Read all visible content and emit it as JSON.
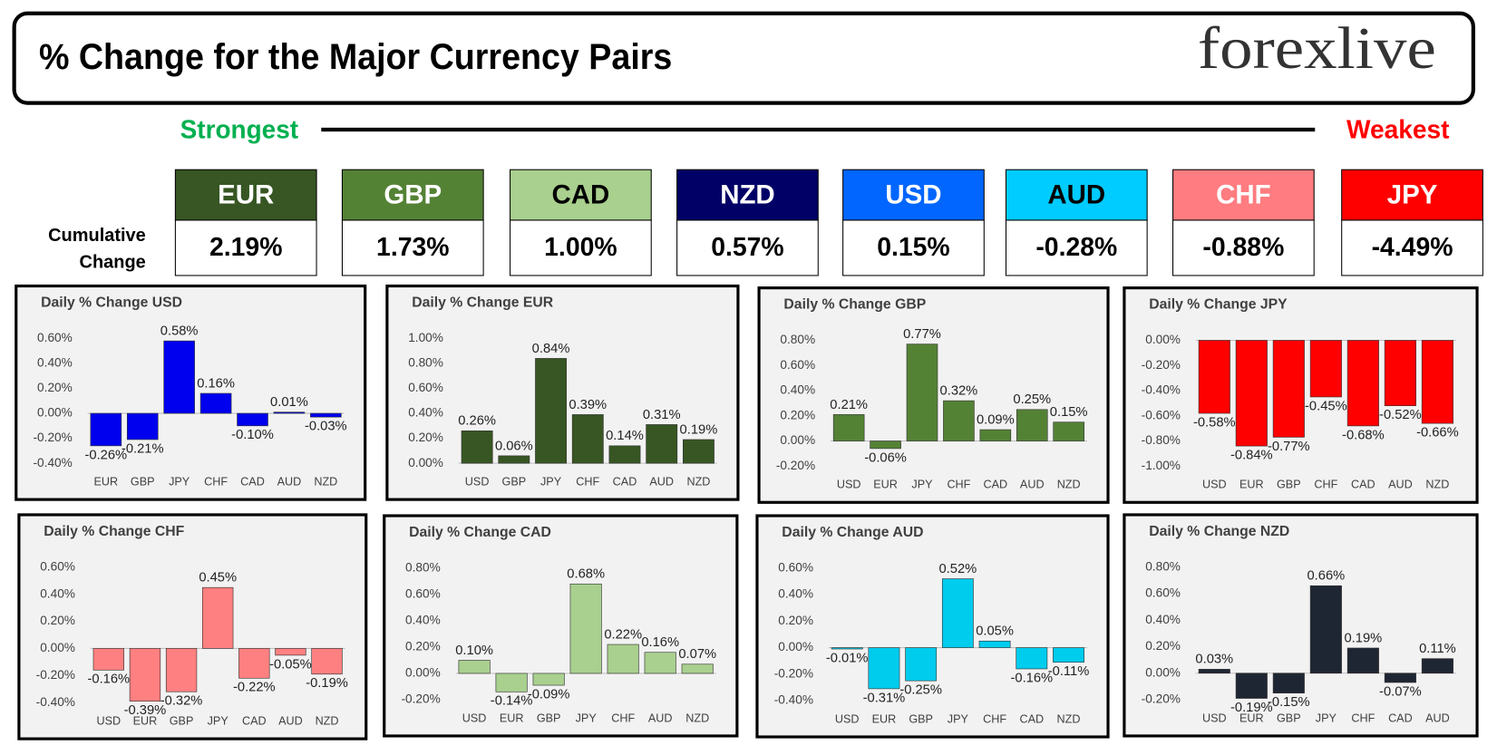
{
  "header": {
    "title": "% Change for the Major Currency Pairs",
    "logo": "forexlive"
  },
  "strongest": "Strongest",
  "weakest": "Weakest",
  "cumulative_label": [
    "Cumulative",
    "Change"
  ],
  "ranking": [
    {
      "currency": "EUR",
      "change": "2.19%",
      "color": "#375623",
      "text_color": "#ffffff"
    },
    {
      "currency": "GBP",
      "change": "1.73%",
      "color": "#548235",
      "text_color": "#ffffff"
    },
    {
      "currency": "CAD",
      "change": "1.00%",
      "color": "#a9d08e",
      "text_color": "#000000"
    },
    {
      "currency": "NZD",
      "change": "0.57%",
      "color": "#000066",
      "text_color": "#ffffff"
    },
    {
      "currency": "USD",
      "change": "0.15%",
      "color": "#0066ff",
      "text_color": "#ffffff"
    },
    {
      "currency": "AUD",
      "change": "-0.28%",
      "color": "#00ccff",
      "text_color": "#000000"
    },
    {
      "currency": "CHF",
      "change": "-0.88%",
      "color": "#ff7c80",
      "text_color": "#ffffff"
    },
    {
      "currency": "JPY",
      "change": "-4.49%",
      "color": "#ff0000",
      "text_color": "#ffffff"
    }
  ],
  "chart_data": [
    {
      "type": "bar",
      "title": "Daily % Change USD",
      "categories": [
        "EUR",
        "GBP",
        "JPY",
        "CHF",
        "CAD",
        "AUD",
        "NZD"
      ],
      "values": [
        -0.26,
        -0.21,
        0.58,
        0.16,
        -0.1,
        0.01,
        -0.03
      ],
      "value_labels": [
        "-0.26%",
        "-0.21%",
        "0.58%",
        "0.16%",
        "-0.10%",
        "0.01%",
        "-0.03%"
      ],
      "color": "#0000ee",
      "ylim": [
        -0.4,
        0.6
      ],
      "yticks": [
        {
          "value": -0.4,
          "label": "-0.40%"
        },
        {
          "value": -0.2,
          "label": "-0.20%"
        },
        {
          "value": 0,
          "label": "0.00%"
        },
        {
          "value": 0.2,
          "label": "0.20%"
        },
        {
          "value": 0.4,
          "label": "0.40%"
        },
        {
          "value": 0.6,
          "label": "0.60%"
        }
      ]
    },
    {
      "type": "bar",
      "title": "Daily % Change EUR",
      "categories": [
        "USD",
        "GBP",
        "JPY",
        "CHF",
        "CAD",
        "AUD",
        "NZD"
      ],
      "values": [
        0.26,
        0.06,
        0.84,
        0.39,
        0.14,
        0.31,
        0.19
      ],
      "value_labels": [
        "0.26%",
        "0.06%",
        "0.84%",
        "0.39%",
        "0.14%",
        "0.31%",
        "0.19%"
      ],
      "color": "#375623",
      "ylim": [
        0,
        1
      ],
      "yticks": [
        {
          "value": 0,
          "label": "0.00%"
        },
        {
          "value": 0.2,
          "label": "0.20%"
        },
        {
          "value": 0.4,
          "label": "0.40%"
        },
        {
          "value": 0.6,
          "label": "0.60%"
        },
        {
          "value": 0.8,
          "label": "0.80%"
        },
        {
          "value": 1,
          "label": "1.00%"
        }
      ]
    },
    {
      "type": "bar",
      "title": "Daily % Change GBP",
      "categories": [
        "USD",
        "EUR",
        "JPY",
        "CHF",
        "CAD",
        "AUD",
        "NZD"
      ],
      "values": [
        0.21,
        -0.06,
        0.77,
        0.32,
        0.09,
        0.25,
        0.15
      ],
      "value_labels": [
        "0.21%",
        "-0.06%",
        "0.77%",
        "0.32%",
        "0.09%",
        "0.25%",
        "0.15%"
      ],
      "color": "#548235",
      "ylim": [
        -0.2,
        0.8
      ],
      "yticks": [
        {
          "value": -0.2,
          "label": "-0.20%"
        },
        {
          "value": 0,
          "label": "0.00%"
        },
        {
          "value": 0.2,
          "label": "0.20%"
        },
        {
          "value": 0.4,
          "label": "0.40%"
        },
        {
          "value": 0.6,
          "label": "0.60%"
        },
        {
          "value": 0.8,
          "label": "0.80%"
        }
      ]
    },
    {
      "type": "bar",
      "title": "Daily % Change JPY",
      "categories": [
        "USD",
        "EUR",
        "GBP",
        "CHF",
        "CAD",
        "AUD",
        "NZD"
      ],
      "values": [
        -0.58,
        -0.84,
        -0.77,
        -0.45,
        -0.68,
        -0.52,
        -0.66
      ],
      "value_labels": [
        "-0.58%",
        "-0.84%",
        "-0.77%",
        "-0.45%",
        "-0.68%",
        "-0.52%",
        "-0.66%"
      ],
      "color": "#ff0000",
      "ylim": [
        -1,
        0
      ],
      "yticks": [
        {
          "value": -1,
          "label": "-1.00%"
        },
        {
          "value": -0.8,
          "label": "-0.80%"
        },
        {
          "value": -0.6,
          "label": "-0.60%"
        },
        {
          "value": -0.4,
          "label": "-0.40%"
        },
        {
          "value": -0.2,
          "label": "-0.20%"
        },
        {
          "value": 0,
          "label": "0.00%"
        }
      ]
    },
    {
      "type": "bar",
      "title": "Daily % Change CHF",
      "categories": [
        "USD",
        "EUR",
        "GBP",
        "JPY",
        "CAD",
        "AUD",
        "NZD"
      ],
      "values": [
        -0.16,
        -0.39,
        -0.32,
        0.45,
        -0.22,
        -0.05,
        -0.19
      ],
      "value_labels": [
        "-0.16%",
        "-0.39%",
        "-0.32%",
        "0.45%",
        "-0.22%",
        "-0.05%",
        "-0.19%"
      ],
      "color": "#ff8080",
      "ylim": [
        -0.4,
        0.6
      ],
      "yticks": [
        {
          "value": -0.4,
          "label": "-0.40%"
        },
        {
          "value": -0.2,
          "label": "-0.20%"
        },
        {
          "value": 0,
          "label": "0.00%"
        },
        {
          "value": 0.2,
          "label": "0.20%"
        },
        {
          "value": 0.4,
          "label": "0.40%"
        },
        {
          "value": 0.6,
          "label": "0.60%"
        }
      ]
    },
    {
      "type": "bar",
      "title": "Daily % Change CAD",
      "categories": [
        "USD",
        "EUR",
        "GBP",
        "JPY",
        "CHF",
        "AUD",
        "NZD"
      ],
      "values": [
        0.1,
        -0.14,
        -0.09,
        0.68,
        0.22,
        0.16,
        0.07
      ],
      "value_labels": [
        "0.10%",
        "-0.14%",
        "-0.09%",
        "0.68%",
        "0.22%",
        "0.16%",
        "0.07%"
      ],
      "color": "#a9d08e",
      "ylim": [
        -0.2,
        0.8
      ],
      "yticks": [
        {
          "value": -0.2,
          "label": "-0.20%"
        },
        {
          "value": 0,
          "label": "0.00%"
        },
        {
          "value": 0.2,
          "label": "0.20%"
        },
        {
          "value": 0.4,
          "label": "0.40%"
        },
        {
          "value": 0.6,
          "label": "0.60%"
        },
        {
          "value": 0.8,
          "label": "0.80%"
        }
      ]
    },
    {
      "type": "bar",
      "title": "Daily % Change AUD",
      "categories": [
        "USD",
        "EUR",
        "GBP",
        "JPY",
        "CHF",
        "CAD",
        "NZD"
      ],
      "values": [
        -0.01,
        -0.31,
        -0.25,
        0.52,
        0.05,
        -0.16,
        -0.11
      ],
      "value_labels": [
        "-0.01%",
        "-0.31%",
        "-0.25%",
        "0.52%",
        "0.05%",
        "-0.16%",
        "-0.11%"
      ],
      "color": "#00ccee",
      "ylim": [
        -0.4,
        0.6
      ],
      "yticks": [
        {
          "value": -0.4,
          "label": "-0.40%"
        },
        {
          "value": -0.2,
          "label": "-0.20%"
        },
        {
          "value": 0,
          "label": "0.00%"
        },
        {
          "value": 0.2,
          "label": "0.20%"
        },
        {
          "value": 0.4,
          "label": "0.40%"
        },
        {
          "value": 0.6,
          "label": "0.60%"
        }
      ]
    },
    {
      "type": "bar",
      "title": "Daily % Change NZD",
      "categories": [
        "USD",
        "EUR",
        "GBP",
        "JPY",
        "CHF",
        "CAD",
        "AUD"
      ],
      "values": [
        0.03,
        -0.19,
        -0.15,
        0.66,
        0.19,
        -0.07,
        0.11
      ],
      "value_labels": [
        "0.03%",
        "-0.19%",
        "-0.15%",
        "0.66%",
        "0.19%",
        "-0.07%",
        "0.11%"
      ],
      "color": "#1f2633",
      "ylim": [
        -0.2,
        0.8
      ],
      "yticks": [
        {
          "value": -0.2,
          "label": "-0.20%"
        },
        {
          "value": 0,
          "label": "0.00%"
        },
        {
          "value": 0.2,
          "label": "0.20%"
        },
        {
          "value": 0.4,
          "label": "0.40%"
        },
        {
          "value": 0.6,
          "label": "0.60%"
        },
        {
          "value": 0.8,
          "label": "0.80%"
        }
      ]
    }
  ]
}
